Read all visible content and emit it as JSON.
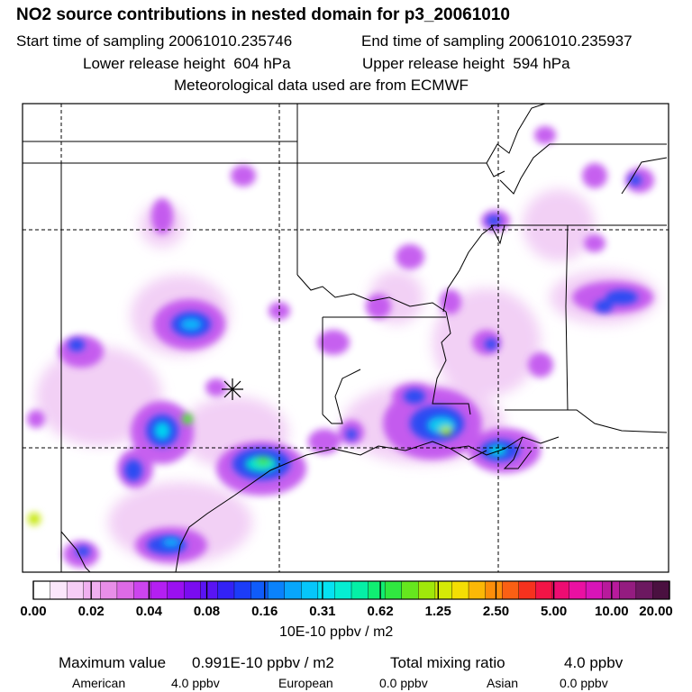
{
  "header": {
    "title": "NO2 source contributions in nested domain for p3_20061010",
    "start_time": "Start time of sampling 20061010.235746",
    "end_time": "End time of sampling 20061010.235937",
    "lower_release": "Lower release height  604 hPa",
    "upper_release": "Upper release height  594 hPa",
    "met_data": "Meteorological data used are from ECMWF"
  },
  "colorbar": {
    "tick_labels": [
      "0.00",
      "0.02",
      "0.04",
      "0.08",
      "0.16",
      "0.31",
      "0.62",
      "1.25",
      "2.50",
      "5.00",
      "10.00",
      "20.00"
    ],
    "colors": [
      "#ffffff",
      "#fbe6fb",
      "#f6cdf6",
      "#f0b0f0",
      "#e88ee8",
      "#dd6ae6",
      "#cc44ee",
      "#b41ff2",
      "#9a10f0",
      "#7a0cf0",
      "#5a14f4",
      "#3322f6",
      "#1c3cf8",
      "#0f5cfa",
      "#0a82fb",
      "#08a6fb",
      "#06c6fa",
      "#05e2f2",
      "#05eed2",
      "#05f0a6",
      "#10ee72",
      "#30e840",
      "#66e61e",
      "#a0e80a",
      "#d4ea06",
      "#f4de04",
      "#fcb806",
      "#fc8e0a",
      "#fa6014",
      "#f6321e",
      "#f21446",
      "#ee0c72",
      "#ea10a2",
      "#d814b8",
      "#b81a9c",
      "#941c80",
      "#6c1860",
      "#4a1040"
    ],
    "units": "10E-10 ppbv / m2"
  },
  "summary": {
    "max_label": "Maximum value",
    "max_value": "0.991E-10 ppbv / m2",
    "total_label": "Total mixing ratio",
    "total_value": "4.0 ppbv",
    "sources": [
      {
        "name": "American",
        "value": "4.0 ppbv"
      },
      {
        "name": "European",
        "value": "0.0 ppbv"
      },
      {
        "name": "Asian",
        "value": "0.0 ppbv"
      }
    ]
  },
  "map": {
    "release_marker": "release-location",
    "colors": {
      "boundary": "#000000",
      "grid": "#000000"
    }
  }
}
